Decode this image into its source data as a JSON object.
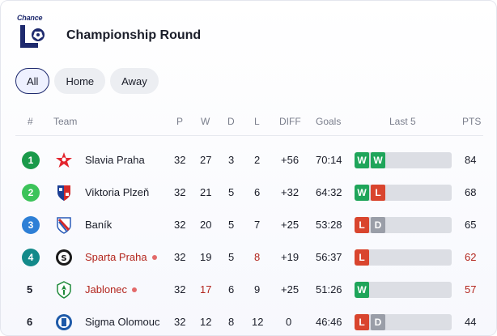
{
  "header": {
    "logo_text": "Chance",
    "title": "Championship Round"
  },
  "filters": [
    {
      "label": "All",
      "active": true
    },
    {
      "label": "Home",
      "active": false
    },
    {
      "label": "Away",
      "active": false
    }
  ],
  "columns": {
    "pos": "#",
    "team": "Team",
    "played": "P",
    "won": "W",
    "drawn": "D",
    "lost": "L",
    "diff": "DIFF",
    "goals": "Goals",
    "last5": "Last 5",
    "pts": "PTS"
  },
  "colors": {
    "pos1": "#1a9a4a",
    "pos2": "#3cc35a",
    "pos3": "#2e7fd6",
    "pos4": "#138a8a",
    "win": "#1fa55a",
    "loss": "#d9452e",
    "draw": "#9a9ea8",
    "brand": "#1e2a6e"
  },
  "rows": [
    {
      "pos": "1",
      "team": "Slavia Praha",
      "crest": "slavia-crest",
      "p": "32",
      "w": "27",
      "d": "3",
      "l": "2",
      "diff": "+56",
      "goals": "70:14",
      "last5": [
        "W",
        "W"
      ],
      "pts": "84"
    },
    {
      "pos": "2",
      "team": "Viktoria Plzeň",
      "crest": "plzen-crest",
      "p": "32",
      "w": "21",
      "d": "5",
      "l": "6",
      "diff": "+32",
      "goals": "64:32",
      "last5": [
        "W",
        "L"
      ],
      "pts": "68"
    },
    {
      "pos": "3",
      "team": "Baník",
      "crest": "banik-crest",
      "p": "32",
      "w": "20",
      "d": "5",
      "l": "7",
      "diff": "+25",
      "goals": "53:28",
      "last5": [
        "L",
        "D"
      ],
      "pts": "65"
    },
    {
      "pos": "4",
      "team": "Sparta Praha",
      "crest": "sparta-crest",
      "p": "32",
      "w": "19",
      "d": "5",
      "l": "8",
      "diff": "+19",
      "goals": "56:37",
      "last5": [
        "L"
      ],
      "pts": "62"
    },
    {
      "pos": "5",
      "team": "Jablonec",
      "crest": "jablonec-crest",
      "p": "32",
      "w": "17",
      "d": "6",
      "l": "9",
      "diff": "+25",
      "goals": "51:26",
      "last5": [
        "W"
      ],
      "pts": "57"
    },
    {
      "pos": "6",
      "team": "Sigma Olomouc",
      "crest": "sigma-crest",
      "p": "32",
      "w": "12",
      "d": "8",
      "l": "12",
      "diff": "0",
      "goals": "46:46",
      "last5": [
        "L",
        "D"
      ],
      "pts": "44"
    }
  ]
}
